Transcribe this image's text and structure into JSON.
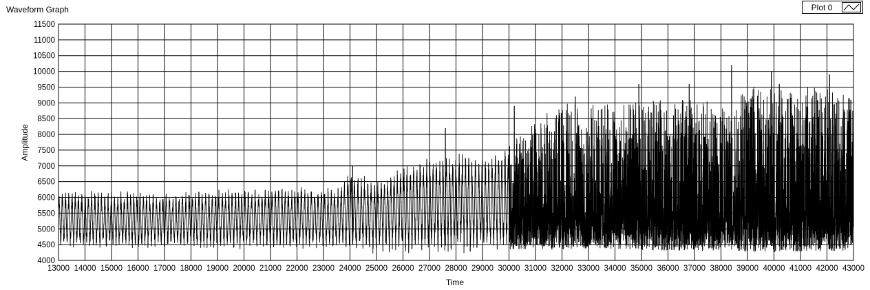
{
  "graph": {
    "title": "Waveform Graph",
    "legend_label": "Plot 0"
  },
  "colors": {
    "background": "#ffffff",
    "grid": "#000000",
    "trace": "#000000"
  },
  "chart_data": {
    "type": "line",
    "title": "Waveform Graph",
    "xlabel": "Time",
    "ylabel": "Amplitude",
    "xlim": [
      13000,
      43000
    ],
    "ylim": [
      4000,
      11500
    ],
    "xticks": [
      13000,
      14000,
      15000,
      16000,
      17000,
      18000,
      19000,
      20000,
      21000,
      22000,
      23000,
      24000,
      25000,
      26000,
      27000,
      28000,
      29000,
      30000,
      31000,
      32000,
      33000,
      34000,
      35000,
      36000,
      37000,
      38000,
      39000,
      40000,
      41000,
      42000,
      43000
    ],
    "yticks": [
      4000,
      4500,
      5000,
      5500,
      6000,
      6500,
      7000,
      7500,
      8000,
      8500,
      9000,
      9500,
      10000,
      10500,
      11000,
      11500
    ],
    "grid": true,
    "legend_position": "top-right",
    "series": [
      {
        "name": "Plot 0",
        "envelope": {
          "x": [
            13000,
            17000,
            21000,
            23500,
            24000,
            25000,
            26000,
            27000,
            28000,
            29000,
            30000,
            30500,
            31000,
            31600,
            32000,
            34000,
            36000,
            38000,
            38500,
            40000,
            42000,
            43000
          ],
          "upper_typical": [
            6200,
            6100,
            6300,
            6300,
            6800,
            6500,
            7000,
            7200,
            7400,
            7200,
            7600,
            8200,
            8500,
            8800,
            9000,
            9000,
            9100,
            9200,
            9500,
            9600,
            9500,
            9200
          ],
          "lower_typical": [
            4400,
            4400,
            4400,
            4400,
            4300,
            4300,
            4300,
            4300,
            4250,
            4300,
            4300,
            4350,
            4400,
            4300,
            4350,
            4350,
            4300,
            4300,
            4300,
            4250,
            4300,
            4300
          ],
          "center": [
            5200,
            5200,
            5200,
            5200,
            5300,
            5300,
            5300,
            5300,
            5300,
            5300,
            5400,
            5400,
            5400,
            5400,
            5400,
            5400,
            5400,
            5400,
            5400,
            5400,
            5400,
            5400
          ]
        },
        "peaks": [
          {
            "x": 24100,
            "y": 7000
          },
          {
            "x": 27600,
            "y": 8200
          },
          {
            "x": 30200,
            "y": 8900
          },
          {
            "x": 32500,
            "y": 9200
          },
          {
            "x": 34900,
            "y": 9600
          },
          {
            "x": 36800,
            "y": 9600
          },
          {
            "x": 38400,
            "y": 10200
          },
          {
            "x": 39900,
            "y": 10000
          },
          {
            "x": 40200,
            "y": 9600
          },
          {
            "x": 42100,
            "y": 9900
          },
          {
            "x": 42900,
            "y": 9100
          }
        ],
        "approx_point_count": 30000
      }
    ]
  }
}
